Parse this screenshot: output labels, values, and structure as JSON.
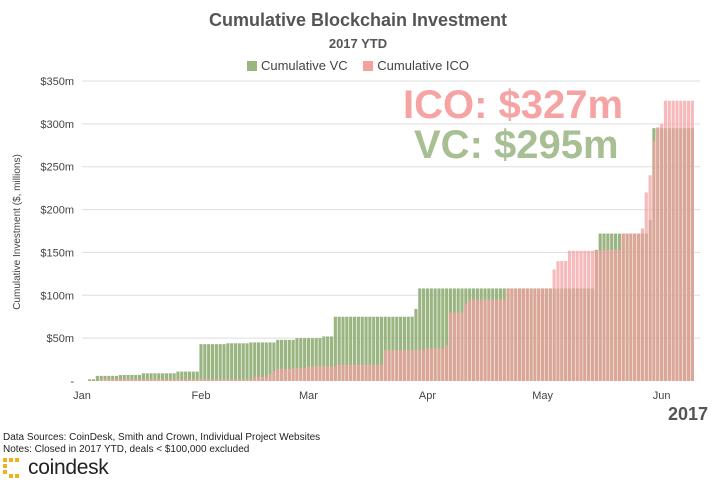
{
  "chart_data": {
    "type": "bar",
    "title": "Cumulative Blockchain Investment",
    "subtitle": "2017 YTD",
    "ylabel": "Cumulative Investment ($, millions)",
    "xlabel": "",
    "year_label": "2017",
    "ylim": [
      0,
      350
    ],
    "yticks": [
      "$350m",
      "$300m",
      "$250m",
      "$200m",
      "$150m",
      "$100m",
      "$50m",
      "-"
    ],
    "ytick_values": [
      350,
      300,
      250,
      200,
      150,
      100,
      50,
      0
    ],
    "xticks": [
      "Jan",
      "Feb",
      "Mar",
      "Apr",
      "May",
      "Jun"
    ],
    "xtick_days": [
      1,
      32,
      60,
      91,
      121,
      152
    ],
    "grid": true,
    "legend_position": "top-center",
    "series": [
      {
        "name": "Cumulative VC",
        "color": "#9ab581",
        "points": [
          [
            1,
            0
          ],
          [
            3,
            2
          ],
          [
            5,
            6
          ],
          [
            10,
            6
          ],
          [
            11,
            7
          ],
          [
            15,
            7
          ],
          [
            17,
            9
          ],
          [
            23,
            9
          ],
          [
            26,
            11
          ],
          [
            31,
            11
          ],
          [
            32,
            43
          ],
          [
            38,
            43
          ],
          [
            39,
            44
          ],
          [
            44,
            44
          ],
          [
            45,
            45
          ],
          [
            51,
            45
          ],
          [
            52,
            48
          ],
          [
            56,
            48
          ],
          [
            57,
            50
          ],
          [
            63,
            50
          ],
          [
            64,
            52
          ],
          [
            66,
            52
          ],
          [
            67,
            75
          ],
          [
            87,
            75
          ],
          [
            88,
            84
          ],
          [
            89,
            108
          ],
          [
            113,
            108
          ],
          [
            119,
            108
          ],
          [
            131,
            108
          ],
          [
            135,
            153
          ],
          [
            136,
            172
          ],
          [
            142,
            172
          ],
          [
            143,
            172
          ],
          [
            148,
            172
          ],
          [
            149,
            188
          ],
          [
            150,
            295
          ],
          [
            160,
            295
          ]
        ]
      },
      {
        "name": "Cumulative ICO",
        "color": "#f4a0a0",
        "points": [
          [
            1,
            0
          ],
          [
            5,
            0
          ],
          [
            6,
            2
          ],
          [
            30,
            2
          ],
          [
            31,
            2
          ],
          [
            45,
            2
          ],
          [
            46,
            5
          ],
          [
            49,
            5
          ],
          [
            50,
            8
          ],
          [
            51,
            12
          ],
          [
            52,
            14
          ],
          [
            55,
            14
          ],
          [
            56,
            15
          ],
          [
            59,
            15
          ],
          [
            60,
            17
          ],
          [
            67,
            17
          ],
          [
            68,
            19
          ],
          [
            79,
            19
          ],
          [
            80,
            36
          ],
          [
            90,
            36
          ],
          [
            91,
            38
          ],
          [
            95,
            38
          ],
          [
            96,
            42
          ],
          [
            97,
            80
          ],
          [
            100,
            80
          ],
          [
            101,
            90
          ],
          [
            102,
            95
          ],
          [
            111,
            95
          ],
          [
            112,
            108
          ],
          [
            121,
            108
          ],
          [
            122,
            108
          ],
          [
            124,
            130
          ],
          [
            125,
            140
          ],
          [
            128,
            152
          ],
          [
            130,
            152
          ],
          [
            136,
            152
          ],
          [
            137,
            153
          ],
          [
            141,
            153
          ],
          [
            142,
            172
          ],
          [
            146,
            172
          ],
          [
            147,
            178
          ],
          [
            148,
            220
          ],
          [
            149,
            240
          ],
          [
            150,
            280
          ],
          [
            151,
            296
          ],
          [
            152,
            300
          ],
          [
            153,
            327
          ],
          [
            160,
            327
          ]
        ]
      }
    ],
    "annotations": [
      "ICO: $327m",
      "VC: $295m"
    ]
  },
  "legend": [
    {
      "label": "Cumulative VC",
      "color": "#9ab581"
    },
    {
      "label": "Cumulative ICO",
      "color": "#f4a0a0"
    }
  ],
  "footer": {
    "sources": "Data Sources: CoinDesk, Smith and Crown, Individual Project Websites",
    "notes": "Notes: Closed in 2017 YTD, deals < $100,000 excluded",
    "brand": "coindesk",
    "brand_color": "#f2b01e"
  }
}
